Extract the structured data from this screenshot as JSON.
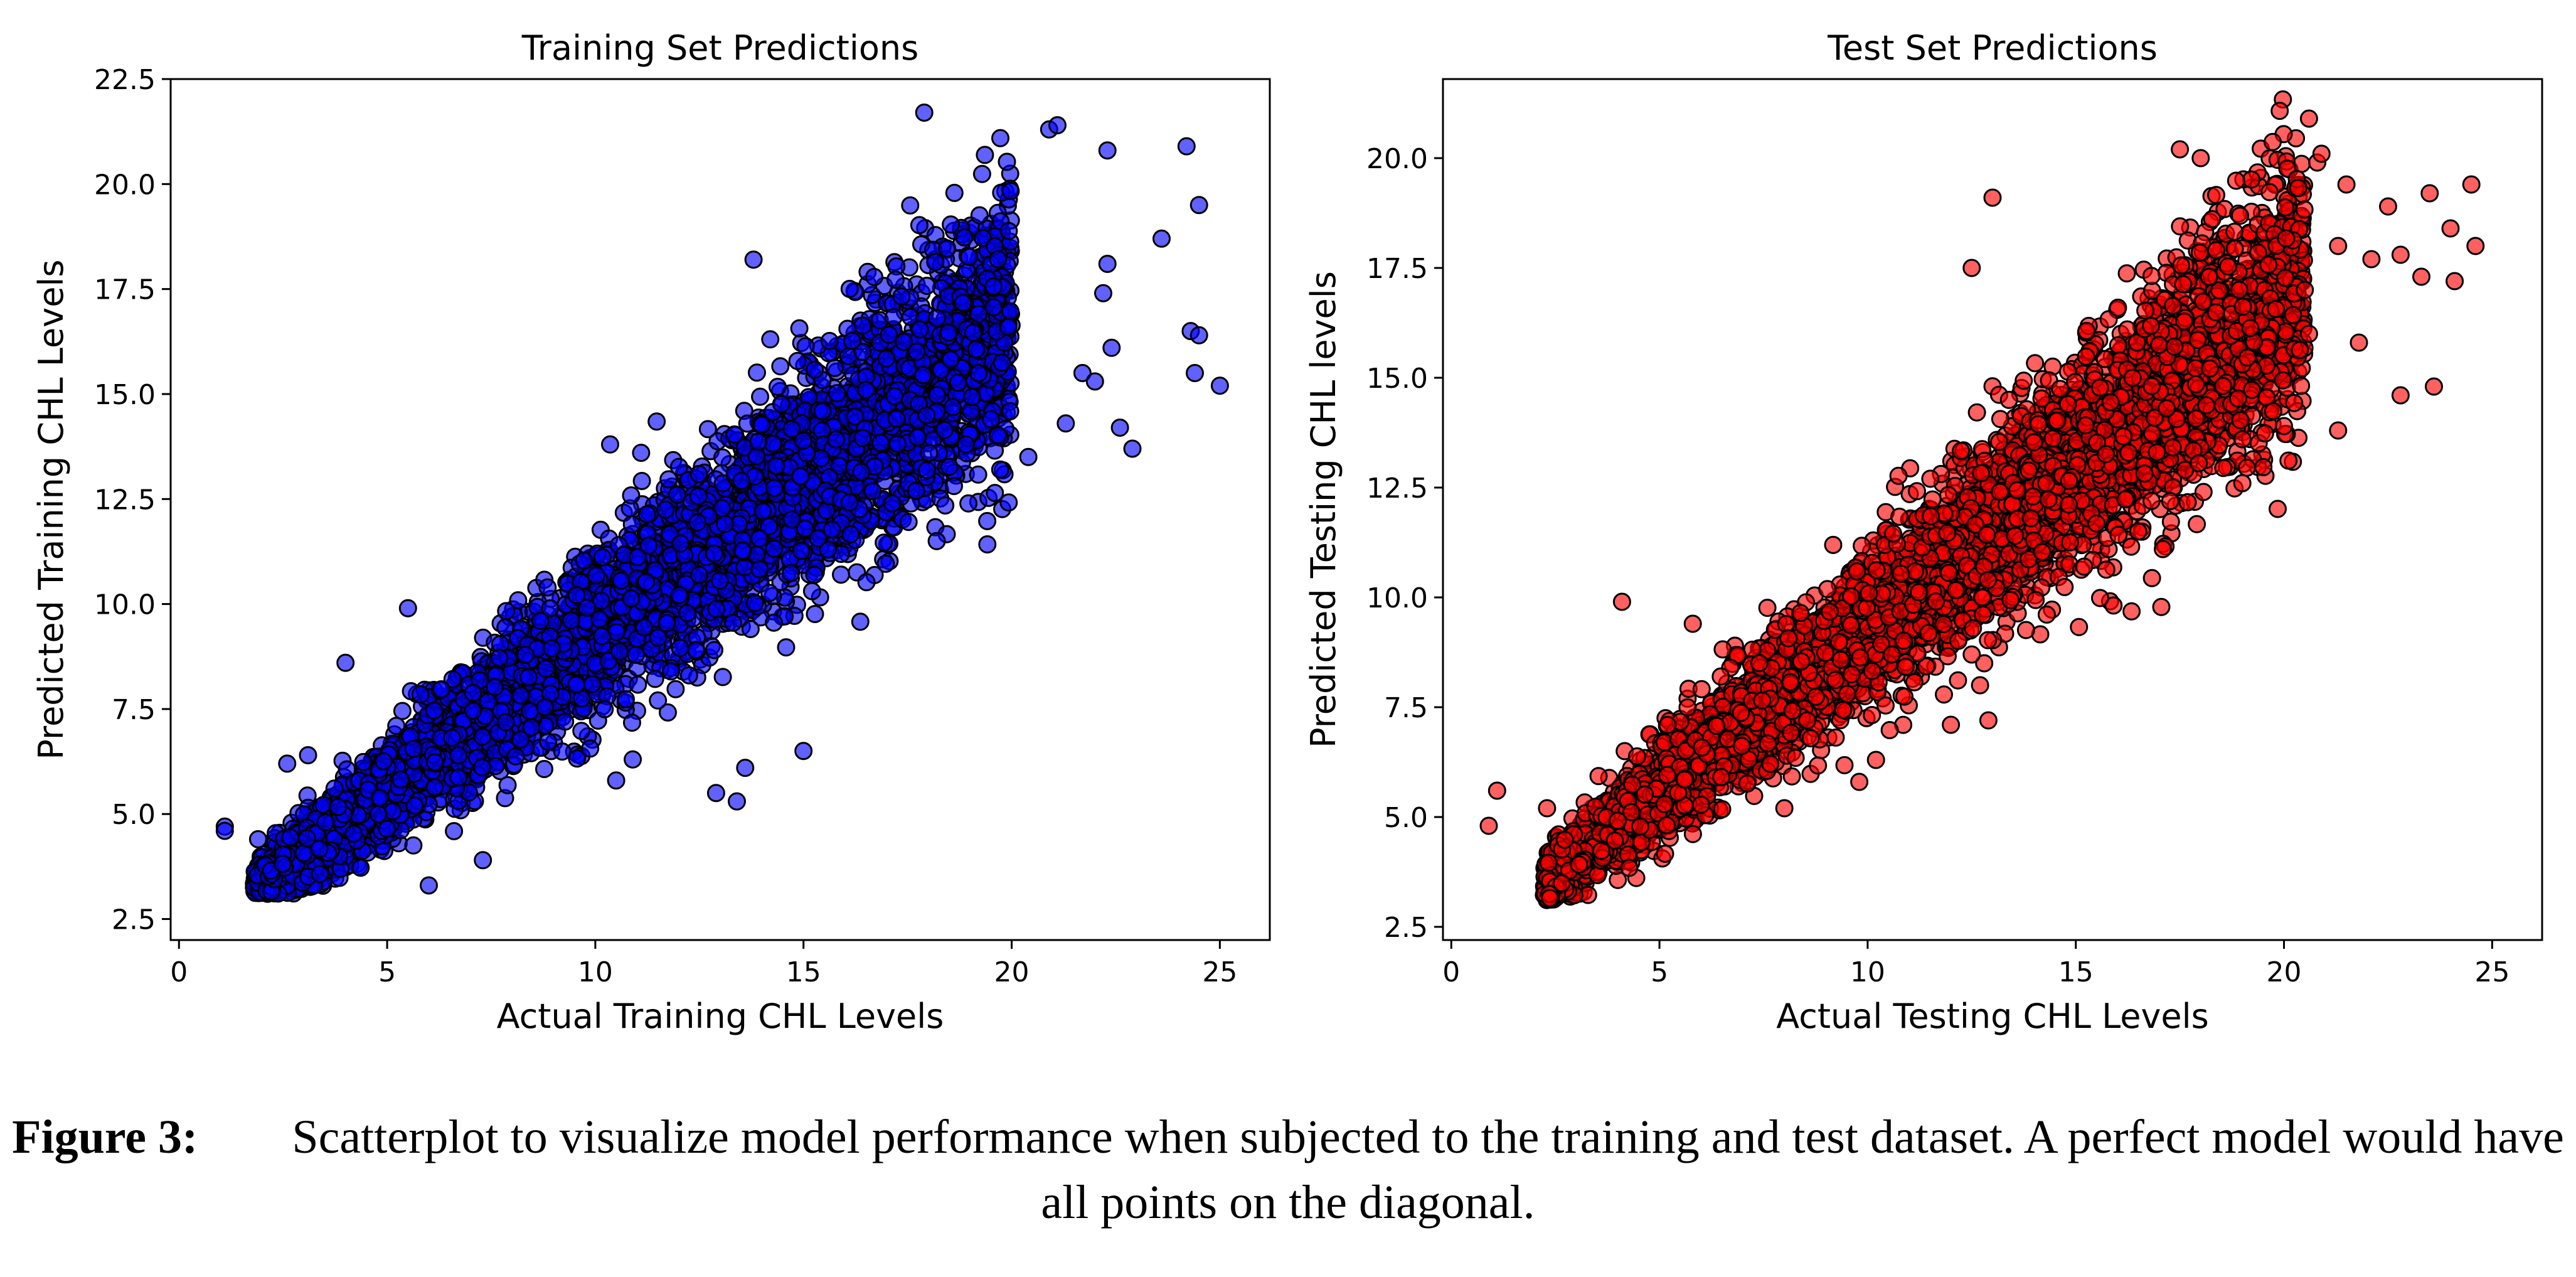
{
  "chart_data": [
    {
      "type": "scatter",
      "title": "Training Set Predictions",
      "xlabel": "Actual Training CHL Levels",
      "ylabel": "Predicted Training CHL Levels",
      "xlim": [
        -0.2,
        26.2
      ],
      "ylim": [
        2.0,
        22.5
      ],
      "xticks": [
        "0",
        "5",
        "10",
        "15",
        "20",
        "25"
      ],
      "yticks": [
        "2.5",
        "5.0",
        "7.5",
        "10.0",
        "12.5",
        "15.0",
        "17.5",
        "20.0",
        "22.5"
      ],
      "color": "#0000ff",
      "edgecolor": "#000000",
      "grid": false,
      "outliers": [
        [
          1.1,
          4.7
        ],
        [
          1.1,
          4.6
        ],
        [
          1.9,
          4.4
        ],
        [
          2.6,
          6.2
        ],
        [
          3.1,
          6.4
        ],
        [
          4.0,
          8.6
        ],
        [
          5.5,
          9.9
        ],
        [
          6.0,
          3.3
        ],
        [
          7.3,
          3.9
        ],
        [
          10.5,
          5.8
        ],
        [
          10.9,
          6.3
        ],
        [
          12.9,
          5.5
        ],
        [
          13.4,
          5.3
        ],
        [
          13.6,
          6.1
        ],
        [
          15.0,
          6.5
        ],
        [
          11.1,
          13.6
        ],
        [
          15.9,
          10.7
        ],
        [
          13.8,
          18.2
        ],
        [
          17.9,
          21.7
        ],
        [
          18.2,
          11.5
        ],
        [
          20.9,
          21.3
        ],
        [
          21.1,
          21.4
        ],
        [
          22.3,
          20.8
        ],
        [
          24.2,
          20.9
        ],
        [
          24.5,
          19.5
        ],
        [
          23.6,
          18.7
        ],
        [
          22.3,
          18.1
        ],
        [
          22.2,
          17.4
        ],
        [
          22.4,
          16.1
        ],
        [
          24.3,
          16.5
        ],
        [
          24.5,
          16.4
        ],
        [
          25.0,
          15.2
        ],
        [
          24.4,
          15.5
        ],
        [
          22.6,
          14.2
        ],
        [
          22.9,
          13.7
        ],
        [
          21.3,
          14.3
        ],
        [
          20.4,
          13.5
        ],
        [
          21.7,
          15.5
        ],
        [
          22.0,
          15.3
        ],
        [
          19.5,
          14.4
        ],
        [
          18.9,
          13.8
        ]
      ]
    },
    {
      "type": "scatter",
      "title": "Test Set Predictions",
      "xlabel": "Actual Testing CHL Levels",
      "ylabel": "Predicted Testing CHL levels",
      "xlim": [
        -0.2,
        26.2
      ],
      "ylim": [
        2.2,
        21.8
      ],
      "xticks": [
        "0",
        "5",
        "10",
        "15",
        "20",
        "25"
      ],
      "yticks": [
        "2.5",
        "5.0",
        "7.5",
        "10.0",
        "12.5",
        "15.0",
        "17.5",
        "20.0"
      ],
      "color": "#ff0000",
      "edgecolor": "#000000",
      "grid": false,
      "outliers": [
        [
          0.9,
          4.8
        ],
        [
          1.1,
          5.6
        ],
        [
          2.3,
          5.2
        ],
        [
          4.1,
          9.9
        ],
        [
          5.8,
          9.4
        ],
        [
          8.0,
          5.2
        ],
        [
          9.8,
          5.8
        ],
        [
          10.2,
          6.3
        ],
        [
          12.0,
          7.1
        ],
        [
          12.9,
          7.2
        ],
        [
          12.8,
          8.5
        ],
        [
          12.7,
          8.0
        ],
        [
          12.5,
          8.7
        ],
        [
          15.2,
          10.7
        ],
        [
          16.5,
          11.5
        ],
        [
          19.0,
          12.6
        ],
        [
          19.0,
          13.6
        ],
        [
          20.0,
          13.9
        ],
        [
          21.3,
          13.8
        ],
        [
          22.8,
          14.6
        ],
        [
          23.6,
          14.8
        ],
        [
          20.6,
          16.0
        ],
        [
          21.8,
          15.8
        ],
        [
          20.5,
          17.0
        ],
        [
          22.1,
          17.7
        ],
        [
          22.8,
          17.8
        ],
        [
          23.3,
          17.3
        ],
        [
          24.1,
          17.2
        ],
        [
          24.6,
          18.0
        ],
        [
          24.5,
          19.4
        ],
        [
          24.0,
          18.4
        ],
        [
          23.5,
          19.2
        ],
        [
          22.5,
          18.9
        ],
        [
          21.5,
          19.4
        ],
        [
          21.3,
          18.0
        ],
        [
          20.8,
          19.9
        ],
        [
          20.9,
          20.1
        ],
        [
          20.6,
          20.9
        ],
        [
          18.0,
          20.0
        ],
        [
          17.5,
          20.2
        ],
        [
          13.0,
          19.1
        ],
        [
          12.5,
          17.5
        ]
      ]
    }
  ],
  "caption": {
    "label": "Figure 3:",
    "text": "Scatterplot to visualize model performance when subjected to the training and test dataset. A perfect model would have all points on the diagonal."
  }
}
